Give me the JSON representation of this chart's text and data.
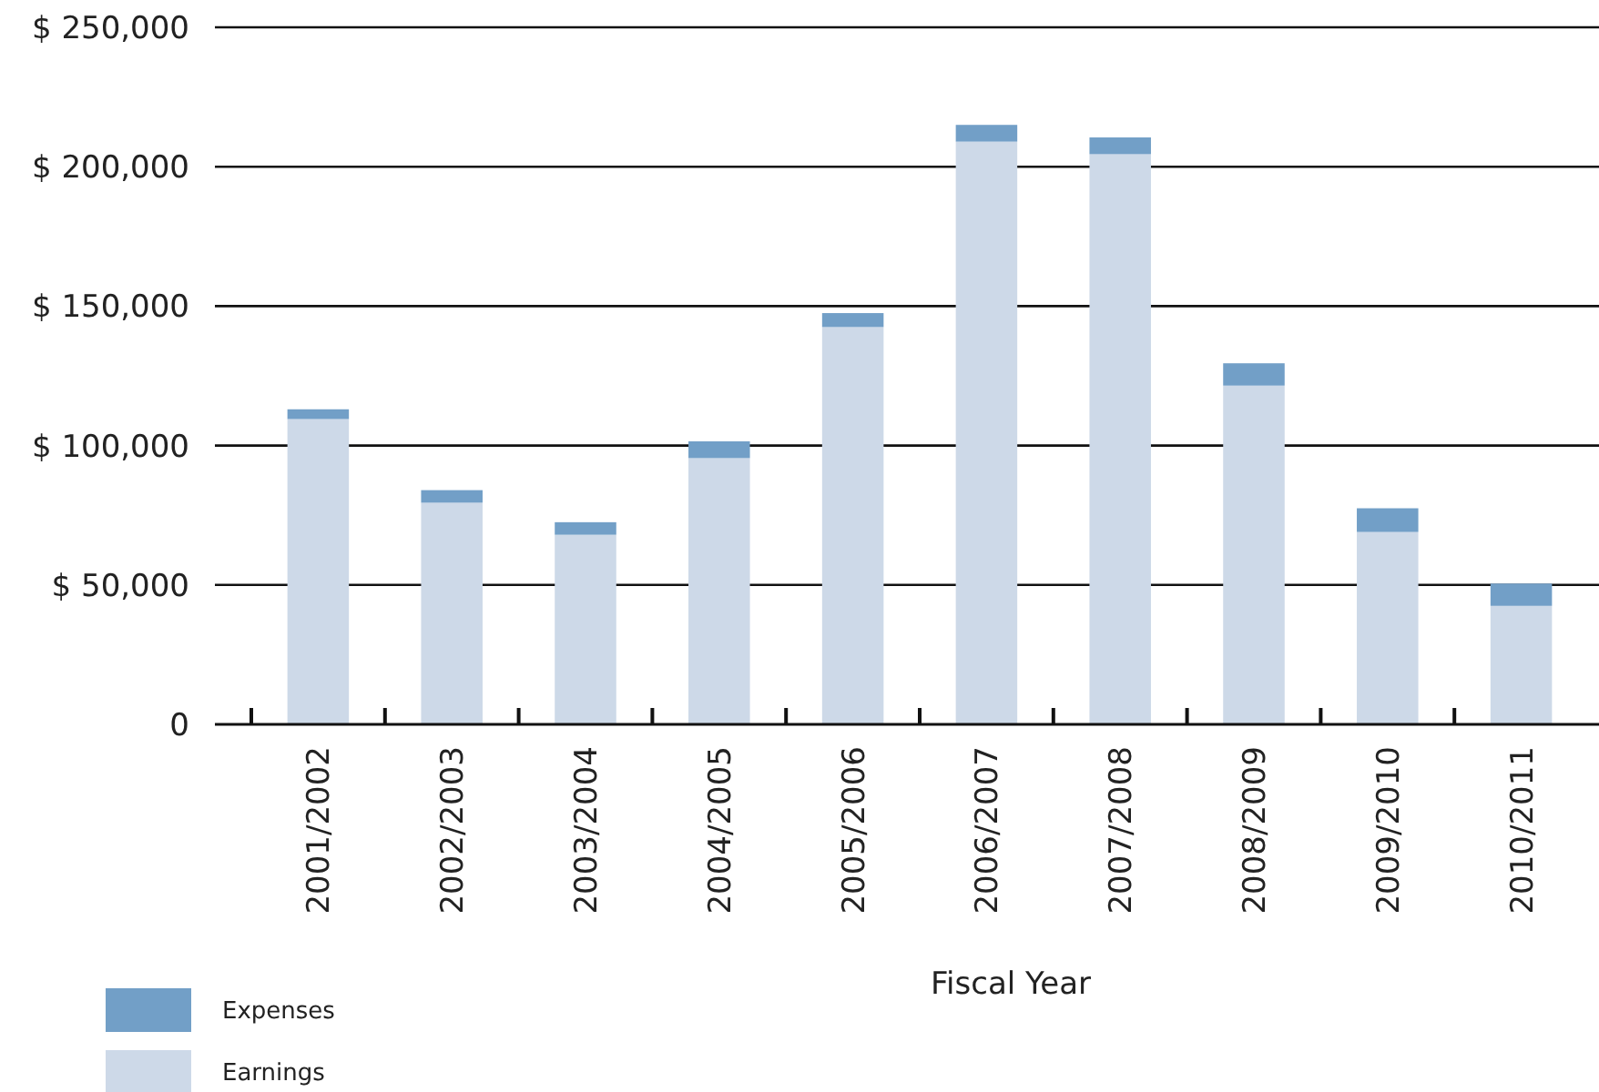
{
  "chart_data": {
    "type": "bar",
    "stacked": true,
    "xlabel": "Fiscal Year",
    "categories": [
      "2001/2002",
      "2002/2003",
      "2003/2004",
      "2004/2005",
      "2005/2006",
      "2006/2007",
      "2007/2008",
      "2008/2009",
      "2009/2010",
      "2010/2011"
    ],
    "series": [
      {
        "name": "Earnings",
        "color": "#cdd9e8",
        "values": [
          109500,
          79500,
          68000,
          95500,
          142500,
          209000,
          204500,
          121500,
          69000,
          42500
        ]
      },
      {
        "name": "Expenses",
        "color": "#729fc7",
        "values": [
          3500,
          4500,
          4500,
          6000,
          5000,
          6000,
          6000,
          8000,
          8500,
          8000
        ]
      }
    ],
    "ylim": [
      0,
      250000
    ],
    "yticks": [
      0,
      {
        "value": 50000,
        "label": "$ 50,000"
      },
      {
        "value": 100000,
        "label": "$ 100,000"
      },
      {
        "value": 150000,
        "label": "$ 150,000"
      },
      {
        "value": 200000,
        "label": "$ 200,000"
      },
      {
        "value": 250000,
        "label": "$ 250,000"
      }
    ],
    "grid": "y",
    "legend": "bottom left"
  }
}
